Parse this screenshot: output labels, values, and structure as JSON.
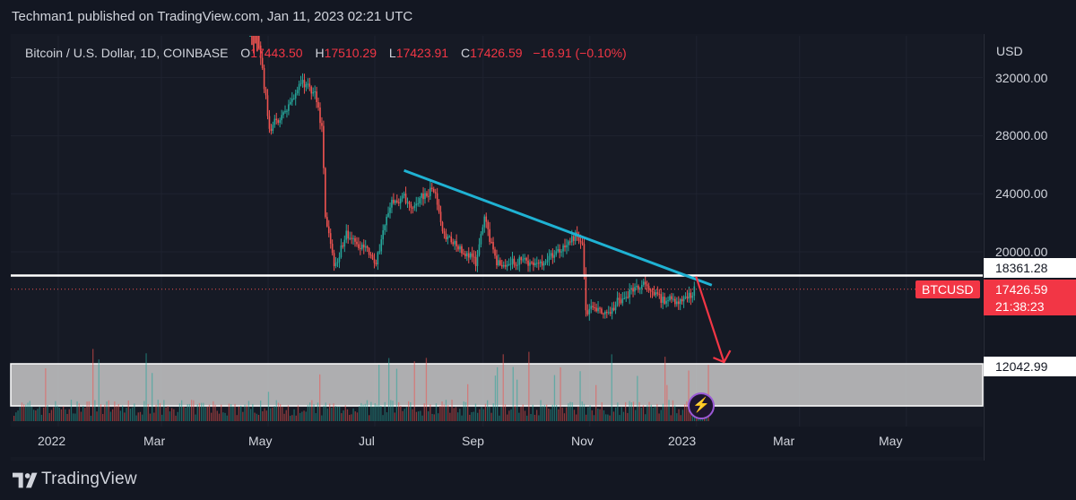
{
  "publish_line": "Techman1 published on TradingView.com, Jan 11, 2023 02:21 UTC",
  "legend": {
    "symbol": "Bitcoin / U.S. Dollar, 1D, COINBASE",
    "o_label": "O",
    "o_value": "17443.50",
    "h_label": "H",
    "h_value": "17510.29",
    "l_label": "L",
    "l_value": "17423.91",
    "c_label": "C",
    "c_value": "17426.59",
    "change": "−16.91 (−0.10%)"
  },
  "price_scale": {
    "currency": "USD",
    "ticks": [
      "32000.00",
      "28000.00",
      "24000.00",
      "20000.00"
    ]
  },
  "labels": {
    "resistance_value": "18361.28",
    "last_price": "17426.59",
    "symbol_tag": "BTCUSD",
    "countdown": "21:38:23",
    "target_value": "12042.99"
  },
  "time_axis": [
    "2022",
    "Mar",
    "May",
    "Jul",
    "Sep",
    "Nov",
    "2023",
    "Mar",
    "May"
  ],
  "footer": {
    "brand": "TradingView"
  },
  "colors": {
    "up": "#26a69a",
    "down": "#ef5350",
    "trendline": "#1fb2d3",
    "support_line": "#ffffff",
    "arrow": "#f23645",
    "zone": "#d0d0d0",
    "badge": "#9b59d6"
  },
  "chart_data": {
    "type": "candlestick",
    "symbol": "Bitcoin / U.S. Dollar, 1D, COINBASE",
    "ylim": [
      10500,
      33500
    ],
    "x_ticks": [
      "2022",
      "Mar",
      "May",
      "Jul",
      "Sep",
      "Nov",
      "2023",
      "Mar",
      "May"
    ],
    "y_ticks": [
      32000,
      28000,
      24000,
      20000
    ],
    "price_path": [
      {
        "date": "2022-05-01",
        "price": 38500
      },
      {
        "date": "2022-05-06",
        "price": 34500
      },
      {
        "date": "2022-05-10",
        "price": 30500
      },
      {
        "date": "2022-05-12",
        "price": 28500
      },
      {
        "date": "2022-05-20",
        "price": 29500
      },
      {
        "date": "2022-05-31",
        "price": 31700
      },
      {
        "date": "2022-06-07",
        "price": 31000
      },
      {
        "date": "2022-06-11",
        "price": 28500
      },
      {
        "date": "2022-06-13",
        "price": 22500
      },
      {
        "date": "2022-06-18",
        "price": 18900
      },
      {
        "date": "2022-06-25",
        "price": 21200
      },
      {
        "date": "2022-07-05",
        "price": 20200
      },
      {
        "date": "2022-07-12",
        "price": 19400
      },
      {
        "date": "2022-07-20",
        "price": 23200
      },
      {
        "date": "2022-07-28",
        "price": 23800
      },
      {
        "date": "2022-08-01",
        "price": 23200
      },
      {
        "date": "2022-08-14",
        "price": 24400
      },
      {
        "date": "2022-08-19",
        "price": 21200
      },
      {
        "date": "2022-08-31",
        "price": 20000
      },
      {
        "date": "2022-09-07",
        "price": 19300
      },
      {
        "date": "2022-09-12",
        "price": 22300
      },
      {
        "date": "2022-09-19",
        "price": 19100
      },
      {
        "date": "2022-10-01",
        "price": 19400
      },
      {
        "date": "2022-10-12",
        "price": 19100
      },
      {
        "date": "2022-10-25",
        "price": 20100
      },
      {
        "date": "2022-11-04",
        "price": 21200
      },
      {
        "date": "2022-11-07",
        "price": 20600
      },
      {
        "date": "2022-11-09",
        "price": 15800
      },
      {
        "date": "2022-11-13",
        "price": 16300
      },
      {
        "date": "2022-11-21",
        "price": 15800
      },
      {
        "date": "2022-12-01",
        "price": 17000
      },
      {
        "date": "2022-12-14",
        "price": 17800
      },
      {
        "date": "2022-12-20",
        "price": 16800
      },
      {
        "date": "2022-12-31",
        "price": 16550
      },
      {
        "date": "2023-01-08",
        "price": 17100
      },
      {
        "date": "2023-01-11",
        "price": 17426.59
      }
    ],
    "annotations": {
      "trendline": [
        {
          "date": "2022-07-28",
          "price": 25600
        },
        {
          "date": "2023-01-20",
          "price": 17700
        }
      ],
      "horizontal_line": 18361.28,
      "target_zone": 12042.99,
      "projection_arrow": [
        {
          "date": "2023-01-11",
          "price": 18300
        },
        {
          "date": "2023-01-27",
          "price": 12400
        }
      ]
    },
    "ohlc_last": {
      "open": 17443.5,
      "high": 17510.29,
      "low": 17423.91,
      "close": 17426.59,
      "change": -16.91,
      "change_pct": -0.1
    }
  }
}
